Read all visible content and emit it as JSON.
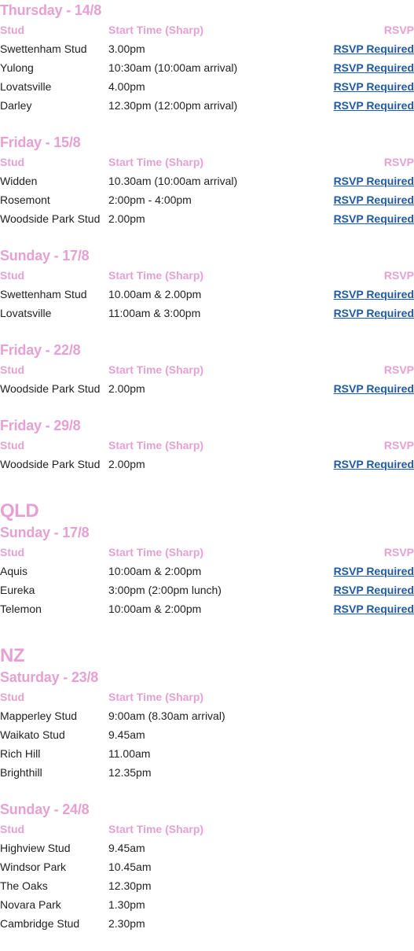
{
  "columns": {
    "stud": "Stud",
    "start": "Start Time (Sharp)",
    "rsvp": "RSVP"
  },
  "colors": {
    "accent": "#e6a0d2",
    "link": "#1f5aa6",
    "text": "#222222"
  },
  "blocks": [
    {
      "title": "Thursday - 14/8",
      "show_rsvp": true,
      "rows": [
        {
          "stud": "Swettenham Stud",
          "time": "3.00pm",
          "rsvp": "RSVP Required"
        },
        {
          "stud": "Yulong",
          "time": "10:30am (10:00am arrival)",
          "rsvp": "RSVP Required"
        },
        {
          "stud": "Lovatsville",
          "time": "4.00pm",
          "rsvp": "RSVP Required"
        },
        {
          "stud": "Darley",
          "time": "12.30pm (12:00pm arrival)",
          "rsvp": "RSVP Required"
        }
      ]
    },
    {
      "title": "Friday - 15/8",
      "show_rsvp": true,
      "rows": [
        {
          "stud": "Widden",
          "time": "10.30am (10:00am arrival)",
          "rsvp": "RSVP Required"
        },
        {
          "stud": "Rosemont",
          "time": "2:00pm - 4:00pm",
          "rsvp": "RSVP Required"
        },
        {
          "stud": "Woodside Park Stud",
          "time": "2.00pm",
          "rsvp": "RSVP Required"
        }
      ]
    },
    {
      "title": "Sunday - 17/8",
      "show_rsvp": true,
      "rows": [
        {
          "stud": "Swettenham Stud",
          "time": "10.00am & 2.00pm",
          "rsvp": "RSVP Required"
        },
        {
          "stud": "Lovatsville",
          "time": "11:00am & 3:00pm",
          "rsvp": "RSVP Required"
        }
      ]
    },
    {
      "title": "Friday - 22/8",
      "show_rsvp": true,
      "rows": [
        {
          "stud": "Woodside Park Stud",
          "time": "2.00pm",
          "rsvp": "RSVP Required"
        }
      ]
    },
    {
      "title": "Friday - 29/8",
      "show_rsvp": true,
      "rows": [
        {
          "stud": "Woodside Park Stud",
          "time": "2.00pm",
          "rsvp": "RSVP Required"
        }
      ]
    },
    {
      "region": "QLD",
      "title": "Sunday - 17/8",
      "show_rsvp": true,
      "rows": [
        {
          "stud": "Aquis",
          "time": "10:00am & 2:00pm",
          "rsvp": "RSVP Required"
        },
        {
          "stud": "Eureka",
          "time": "3:00pm (2:00pm lunch)",
          "rsvp": "RSVP Required"
        },
        {
          "stud": "Telemon",
          "time": "10:00am & 2:00pm",
          "rsvp": "RSVP Required"
        }
      ]
    },
    {
      "region": "NZ",
      "title": "Saturday - 23/8",
      "show_rsvp": false,
      "rows": [
        {
          "stud": "Mapperley Stud",
          "time": "9:00am (8.30am arrival)"
        },
        {
          "stud": "Waikato Stud",
          "time": "9.45am"
        },
        {
          "stud": "Rich Hill",
          "time": "11.00am"
        },
        {
          "stud": "Brighthill",
          "time": "12.35pm"
        }
      ]
    },
    {
      "title": "Sunday - 24/8",
      "show_rsvp": false,
      "rows": [
        {
          "stud": "Highview Stud",
          "time": "9.45am"
        },
        {
          "stud": "Windsor Park",
          "time": "10.45am"
        },
        {
          "stud": "The Oaks",
          "time": "12.30pm"
        },
        {
          "stud": "Novara Park",
          "time": "1.30pm"
        },
        {
          "stud": "Cambridge Stud",
          "time": "2.30pm"
        }
      ]
    }
  ]
}
